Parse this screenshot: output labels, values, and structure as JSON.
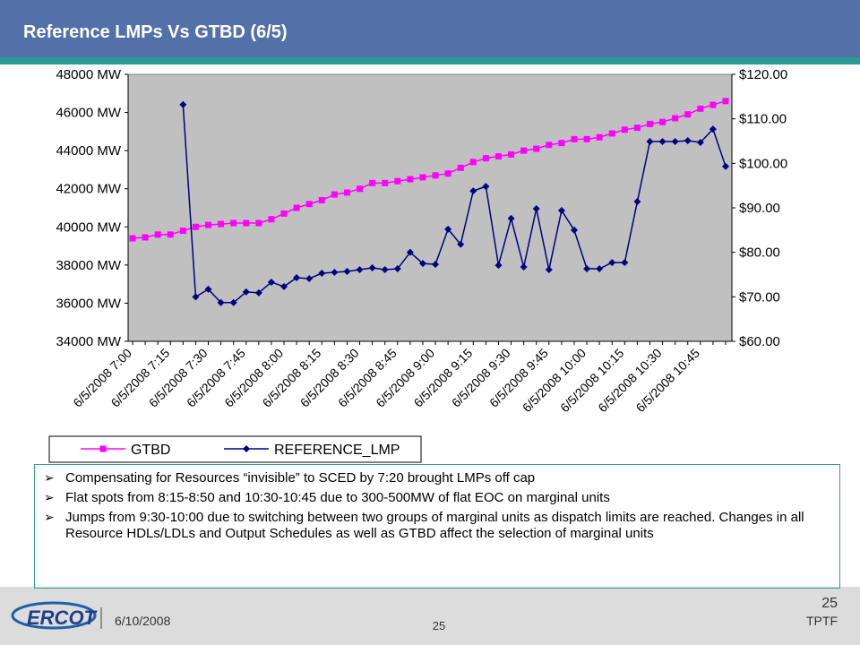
{
  "header": {
    "title": "Reference LMPs Vs GTBD (6/5)"
  },
  "chart_data": {
    "type": "line",
    "categories": [
      "6/5/2008 7:00",
      null,
      null,
      "6/5/2008 7:15",
      null,
      null,
      "6/5/2008 7:30",
      null,
      null,
      "6/5/2008 7:45",
      null,
      null,
      "6/5/2008 8:00",
      null,
      null,
      "6/5/2008 8:15",
      null,
      null,
      "6/5/2008 8:30",
      null,
      null,
      "6/5/2008 8:45",
      null,
      null,
      "6/5/2008 9:00",
      null,
      null,
      "6/5/2008 9:15",
      null,
      null,
      "6/5/2008 9:30",
      null,
      null,
      "6/5/2008 9:45",
      null,
      null,
      "6/5/2008 10:00",
      null,
      null,
      "6/5/2008 10:15",
      null,
      null,
      "6/5/2008 10:30",
      null,
      null,
      "6/5/2008 10:45",
      null,
      null
    ],
    "series": [
      {
        "name": "GTBD",
        "color": "#ff00ff",
        "marker": "square",
        "values": [
          39400,
          39450,
          39600,
          39600,
          39800,
          40000,
          40100,
          40150,
          40200,
          40200,
          40200,
          40400,
          40700,
          41000,
          41200,
          41400,
          41700,
          41800,
          42000,
          42300,
          42300,
          42400,
          42500,
          42600,
          42700,
          42800,
          43100,
          43400,
          43600,
          43700,
          43800,
          44000,
          44100,
          44300,
          44400,
          44600,
          44600,
          44700,
          44900,
          45100,
          45200,
          45400,
          45500,
          45700,
          45900,
          46200,
          46400,
          46600
        ]
      },
      {
        "name": "REFERENCE_LMP",
        "color": "#000080",
        "marker": "diamond",
        "axis": "y2",
        "values": [
          null,
          null,
          null,
          null,
          113.2,
          70,
          71.7,
          68.7,
          68.7,
          71.1,
          70.9,
          73.3,
          72.3,
          74.3,
          74.1,
          75.3,
          75.5,
          75.7,
          76.1,
          76.5,
          76.1,
          76.3,
          80,
          77.5,
          77.3,
          85.2,
          81.8,
          93.8,
          94.8,
          77.1,
          87.6,
          76.7,
          89.8,
          76.1,
          89.4,
          85,
          76.3,
          76.3,
          77.7,
          77.7,
          91.4,
          104.9,
          104.9,
          104.9,
          105.1,
          104.7,
          107.7,
          99.3
        ]
      }
    ],
    "ylim": [
      34000,
      48000
    ],
    "yticks": [
      {
        "value": 34000,
        "label": "34000 MW"
      },
      {
        "value": 36000,
        "label": "36000 MW"
      },
      {
        "value": 38000,
        "label": "38000 MW"
      },
      {
        "value": 40000,
        "label": "40000 MW"
      },
      {
        "value": 42000,
        "label": "42000 MW"
      },
      {
        "value": 44000,
        "label": "44000 MW"
      },
      {
        "value": 46000,
        "label": "46000 MW"
      },
      {
        "value": 48000,
        "label": "48000 MW"
      }
    ],
    "y2lim": [
      60,
      120
    ],
    "y2ticks": [
      {
        "value": 60,
        "label": "$60.00"
      },
      {
        "value": 70,
        "label": "$70.00"
      },
      {
        "value": 80,
        "label": "$80.00"
      },
      {
        "value": 90,
        "label": "$90.00"
      },
      {
        "value": 100,
        "label": "$100.00"
      },
      {
        "value": 110,
        "label": "$110.00"
      },
      {
        "value": 120,
        "label": "$120.00"
      }
    ],
    "grid": false,
    "legend": "bottom",
    "plot_background": "#c0c0c0"
  },
  "bullets": [
    "Compensating for Resources “invisible” to SCED by 7:20 brought LMPs off cap",
    "Flat spots from 8:15-8:50 and 10:30-10:45 due to 300-500MW of flat EOC on marginal units",
    "Jumps from 9:30-10:00 due to switching between two groups of marginal units as dispatch limits are reached.  Changes in all Resource HDLs/LDLs and Output Schedules as well as GTBD affect the selection of marginal units"
  ],
  "footer": {
    "logo": "ERCOT",
    "date": "6/10/2008",
    "page": "25",
    "page_center": "25",
    "org": "TPTF"
  }
}
